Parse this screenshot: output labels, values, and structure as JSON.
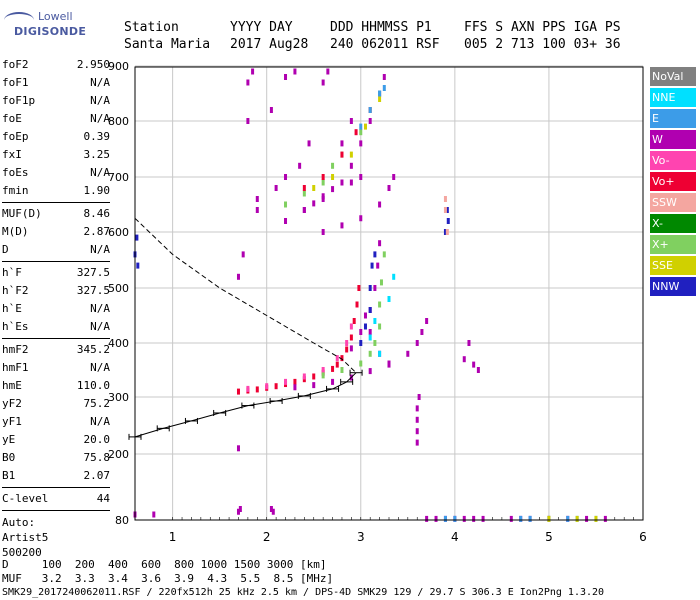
{
  "logo": {
    "line1": "Lowell",
    "line2": "DIGISONDE"
  },
  "header": {
    "labels": [
      "Station",
      "YYYY DAY",
      "DDD HHMMSS P1",
      "FFS S AXN PPS IGA PS"
    ],
    "values": [
      "Santa Maria",
      "2017 Aug28",
      "240 062011 RSF",
      "005 2 713 100 03+ 36"
    ]
  },
  "params_group1": [
    {
      "k": "foF2",
      "v": "2.950"
    },
    {
      "k": "foF1",
      "v": "N/A"
    },
    {
      "k": "foF1p",
      "v": "N/A"
    },
    {
      "k": "foE",
      "v": "N/A"
    },
    {
      "k": "foEp",
      "v": "0.39"
    },
    {
      "k": "fxI",
      "v": "3.25"
    },
    {
      "k": "foEs",
      "v": "N/A"
    },
    {
      "k": "fmin",
      "v": "1.90"
    }
  ],
  "params_group2": [
    {
      "k": "MUF(D)",
      "v": "8.46"
    },
    {
      "k": "M(D)",
      "v": "2.87"
    },
    {
      "k": "D",
      "v": "N/A"
    }
  ],
  "params_group3": [
    {
      "k": "h`F",
      "v": "327.5"
    },
    {
      "k": "h`F2",
      "v": "327.5"
    },
    {
      "k": "h`E",
      "v": "N/A"
    },
    {
      "k": "h`Es",
      "v": "N/A"
    }
  ],
  "params_group4": [
    {
      "k": "hmF2",
      "v": "345.2"
    },
    {
      "k": "hmF1",
      "v": "N/A"
    },
    {
      "k": "hmE",
      "v": "110.0"
    },
    {
      "k": "yF2",
      "v": "75.2"
    },
    {
      "k": "yF1",
      "v": "N/A"
    },
    {
      "k": "yE",
      "v": "20.0"
    },
    {
      "k": "B0",
      "v": "75.8"
    },
    {
      "k": "B1",
      "v": "2.07"
    }
  ],
  "params_group5": [
    {
      "k": "C-level",
      "v": "44"
    }
  ],
  "auto": {
    "line1": "Auto:",
    "line2": "Artist5",
    "line3": "500200"
  },
  "legend": [
    {
      "label": "NoVal",
      "color": "#808080"
    },
    {
      "label": "NNE",
      "color": "#00e0ff"
    },
    {
      "label": "E",
      "color": "#3c9ce8"
    },
    {
      "label": "W",
      "color": "#b000b0"
    },
    {
      "label": "Vo-",
      "color": "#ff44b0"
    },
    {
      "label": "Vo+",
      "color": "#ee0033"
    },
    {
      "label": "SSW",
      "color": "#f4a6a0"
    },
    {
      "label": "X-",
      "color": "#008800"
    },
    {
      "label": "X+",
      "color": "#80d060"
    },
    {
      "label": "SSE",
      "color": "#d0d000"
    },
    {
      "label": "NNW",
      "color": "#2020c0"
    }
  ],
  "footer": {
    "line1": "D     100  200  400  600  800 1000 1500 3000 [km]",
    "line2": "MUF   3.2  3.3  3.4  3.6  3.9  4.3  5.5  8.5 [MHz]",
    "line3": "SMK29_2017240062011.RSF / 220fx512h 25 kHz 2.5 km / DPS-4D SMK29 129 / 29.7 S 306.3 E Ion2Png 1.3.20"
  },
  "chart_data": {
    "type": "scatter",
    "x_ticks": [
      "1",
      "2",
      "3",
      "4",
      "5",
      "6"
    ],
    "y_ticks": [
      "80",
      "200",
      "300",
      "400",
      "500",
      "600",
      "700",
      "800",
      "900"
    ],
    "x_range": [
      0.6,
      6.0
    ],
    "y_range": [
      80,
      900
    ],
    "y_scale": "nonlinear",
    "grid": true,
    "curves": {
      "profile": [
        [
          0.6,
          230
        ],
        [
          0.9,
          245
        ],
        [
          1.2,
          258
        ],
        [
          1.5,
          272
        ],
        [
          1.8,
          285
        ],
        [
          2.1,
          293
        ],
        [
          2.4,
          302
        ],
        [
          2.7,
          315
        ],
        [
          2.85,
          328
        ],
        [
          2.95,
          345
        ]
      ],
      "dashed": [
        [
          0.6,
          625
        ],
        [
          1.0,
          560
        ],
        [
          1.5,
          500
        ],
        [
          2.0,
          450
        ],
        [
          2.5,
          400
        ],
        [
          2.8,
          370
        ],
        [
          2.95,
          345
        ]
      ]
    },
    "traces": [
      {
        "dir": "Vo+",
        "pts": [
          [
            1.7,
            310
          ],
          [
            1.8,
            312
          ],
          [
            1.9,
            314
          ],
          [
            2.0,
            317
          ],
          [
            2.1,
            320
          ],
          [
            2.2,
            324
          ],
          [
            2.3,
            328
          ],
          [
            2.4,
            333
          ],
          [
            2.5,
            338
          ],
          [
            2.6,
            345
          ],
          [
            2.7,
            352
          ],
          [
            2.75,
            360
          ],
          [
            2.8,
            372
          ],
          [
            2.85,
            388
          ],
          [
            2.9,
            410
          ],
          [
            2.93,
            440
          ],
          [
            2.96,
            470
          ],
          [
            2.98,
            500
          ]
        ]
      },
      {
        "dir": "Vo-",
        "pts": [
          [
            1.8,
            315
          ],
          [
            2.0,
            320
          ],
          [
            2.2,
            328
          ],
          [
            2.4,
            338
          ],
          [
            2.6,
            350
          ],
          [
            2.75,
            372
          ],
          [
            2.85,
            400
          ],
          [
            2.9,
            430
          ]
        ]
      },
      {
        "dir": "W",
        "pts": [
          [
            2.3,
            318
          ],
          [
            2.5,
            322
          ],
          [
            2.7,
            328
          ],
          [
            2.9,
            336
          ],
          [
            3.1,
            348
          ],
          [
            3.3,
            362
          ],
          [
            3.5,
            380
          ],
          [
            3.6,
            400
          ],
          [
            3.65,
            420
          ],
          [
            3.7,
            440
          ],
          [
            3.1,
            460
          ],
          [
            3.15,
            500
          ],
          [
            3.18,
            540
          ],
          [
            3.2,
            580
          ],
          [
            2.9,
            390
          ],
          [
            3.0,
            420
          ],
          [
            3.05,
            450
          ],
          [
            3.1,
            420
          ],
          [
            3.2,
            380
          ],
          [
            3.3,
            360
          ]
        ]
      },
      {
        "dir": "X+",
        "pts": [
          [
            2.6,
            340
          ],
          [
            2.8,
            350
          ],
          [
            3.0,
            362
          ],
          [
            3.1,
            380
          ],
          [
            3.15,
            400
          ],
          [
            3.2,
            430
          ],
          [
            3.2,
            470
          ],
          [
            3.22,
            510
          ],
          [
            3.25,
            560
          ]
        ]
      },
      {
        "dir": "NNW",
        "pts": [
          [
            3.0,
            400
          ],
          [
            3.05,
            430
          ],
          [
            3.1,
            460
          ],
          [
            3.1,
            500
          ],
          [
            3.12,
            540
          ],
          [
            3.15,
            560
          ],
          [
            3.9,
            600
          ],
          [
            3.92,
            640
          ],
          [
            3.93,
            620
          ],
          [
            0.6,
            560
          ],
          [
            0.62,
            590
          ],
          [
            0.63,
            540
          ]
        ]
      },
      {
        "dir": "NNE",
        "pts": [
          [
            3.1,
            410
          ],
          [
            3.15,
            440
          ],
          [
            3.2,
            380
          ],
          [
            3.3,
            480
          ],
          [
            3.35,
            520
          ]
        ]
      },
      {
        "dir": "W",
        "pts": [
          [
            2.6,
            600
          ],
          [
            2.8,
            612
          ],
          [
            3.0,
            625
          ],
          [
            3.2,
            650
          ],
          [
            3.3,
            680
          ],
          [
            3.35,
            700
          ],
          [
            2.2,
            620
          ],
          [
            2.4,
            640
          ],
          [
            2.6,
            660
          ],
          [
            2.8,
            690
          ],
          [
            2.9,
            720
          ],
          [
            3.0,
            760
          ],
          [
            3.1,
            800
          ],
          [
            3.2,
            850
          ],
          [
            3.25,
            880
          ],
          [
            2.8,
            760
          ],
          [
            2.9,
            800
          ]
        ]
      },
      {
        "dir": "X+",
        "pts": [
          [
            2.2,
            650
          ],
          [
            2.4,
            670
          ],
          [
            2.6,
            690
          ],
          [
            2.7,
            720
          ],
          [
            2.8,
            740
          ],
          [
            3.0,
            780
          ],
          [
            3.1,
            820
          ],
          [
            3.2,
            850
          ]
        ]
      },
      {
        "dir": "SSE",
        "pts": [
          [
            2.5,
            680
          ],
          [
            2.7,
            700
          ],
          [
            2.9,
            740
          ],
          [
            3.05,
            790
          ],
          [
            3.2,
            840
          ]
        ]
      },
      {
        "dir": "Vo+",
        "pts": [
          [
            2.4,
            680
          ],
          [
            2.6,
            700
          ],
          [
            2.8,
            740
          ],
          [
            2.95,
            780
          ],
          [
            3.1,
            820
          ]
        ]
      },
      {
        "dir": "E",
        "pts": [
          [
            3.1,
            820
          ],
          [
            3.2,
            850
          ],
          [
            3.25,
            860
          ],
          [
            3.0,
            790
          ]
        ]
      },
      {
        "dir": "W",
        "pts": [
          [
            2.4,
            640
          ],
          [
            2.5,
            652
          ],
          [
            2.6,
            665
          ],
          [
            2.7,
            678
          ],
          [
            2.9,
            690
          ],
          [
            3.0,
            700
          ]
        ]
      },
      {
        "dir": "W",
        "pts": [
          [
            3.6,
            220
          ],
          [
            3.6,
            240
          ],
          [
            3.6,
            260
          ],
          [
            3.6,
            280
          ],
          [
            3.62,
            300
          ],
          [
            4.1,
            370
          ],
          [
            4.15,
            400
          ],
          [
            4.2,
            360
          ],
          [
            4.25,
            350
          ],
          [
            1.7,
            95
          ],
          [
            1.72,
            100
          ],
          [
            2.05,
            100
          ],
          [
            2.07,
            95
          ],
          [
            1.7,
            210
          ]
        ]
      },
      {
        "dir": "W",
        "pts": [
          [
            0.6,
            90
          ],
          [
            0.8,
            90
          ]
        ]
      },
      {
        "dir": "W",
        "pts": [
          [
            3.7,
            82
          ],
          [
            3.8,
            82
          ],
          [
            3.9,
            82
          ],
          [
            4.0,
            82
          ],
          [
            4.1,
            82
          ],
          [
            4.2,
            82
          ],
          [
            4.3,
            82
          ],
          [
            4.6,
            82
          ],
          [
            4.7,
            82
          ],
          [
            4.8,
            82
          ],
          [
            5.0,
            82
          ],
          [
            5.2,
            82
          ],
          [
            5.4,
            82
          ],
          [
            5.6,
            82
          ]
        ]
      },
      {
        "dir": "E",
        "pts": [
          [
            3.9,
            82
          ],
          [
            4.0,
            82
          ],
          [
            4.7,
            82
          ],
          [
            4.8,
            82
          ],
          [
            5.0,
            82
          ],
          [
            5.2,
            82
          ],
          [
            5.3,
            82
          ],
          [
            5.5,
            82
          ]
        ]
      },
      {
        "dir": "SSE",
        "pts": [
          [
            5.0,
            82
          ],
          [
            5.3,
            82
          ],
          [
            5.5,
            82
          ]
        ]
      },
      {
        "dir": "SSW",
        "pts": [
          [
            3.9,
            640
          ],
          [
            3.9,
            660
          ],
          [
            3.92,
            600
          ]
        ]
      },
      {
        "dir": "W",
        "pts": [
          [
            1.8,
            870
          ],
          [
            1.85,
            890
          ],
          [
            1.8,
            800
          ],
          [
            1.7,
            520
          ],
          [
            1.75,
            560
          ],
          [
            2.2,
            880
          ],
          [
            2.3,
            890
          ],
          [
            2.6,
            870
          ],
          [
            2.65,
            890
          ],
          [
            2.05,
            820
          ],
          [
            1.9,
            640
          ],
          [
            1.9,
            660
          ],
          [
            2.1,
            680
          ],
          [
            2.2,
            700
          ],
          [
            2.35,
            720
          ],
          [
            2.45,
            760
          ]
        ]
      }
    ]
  }
}
